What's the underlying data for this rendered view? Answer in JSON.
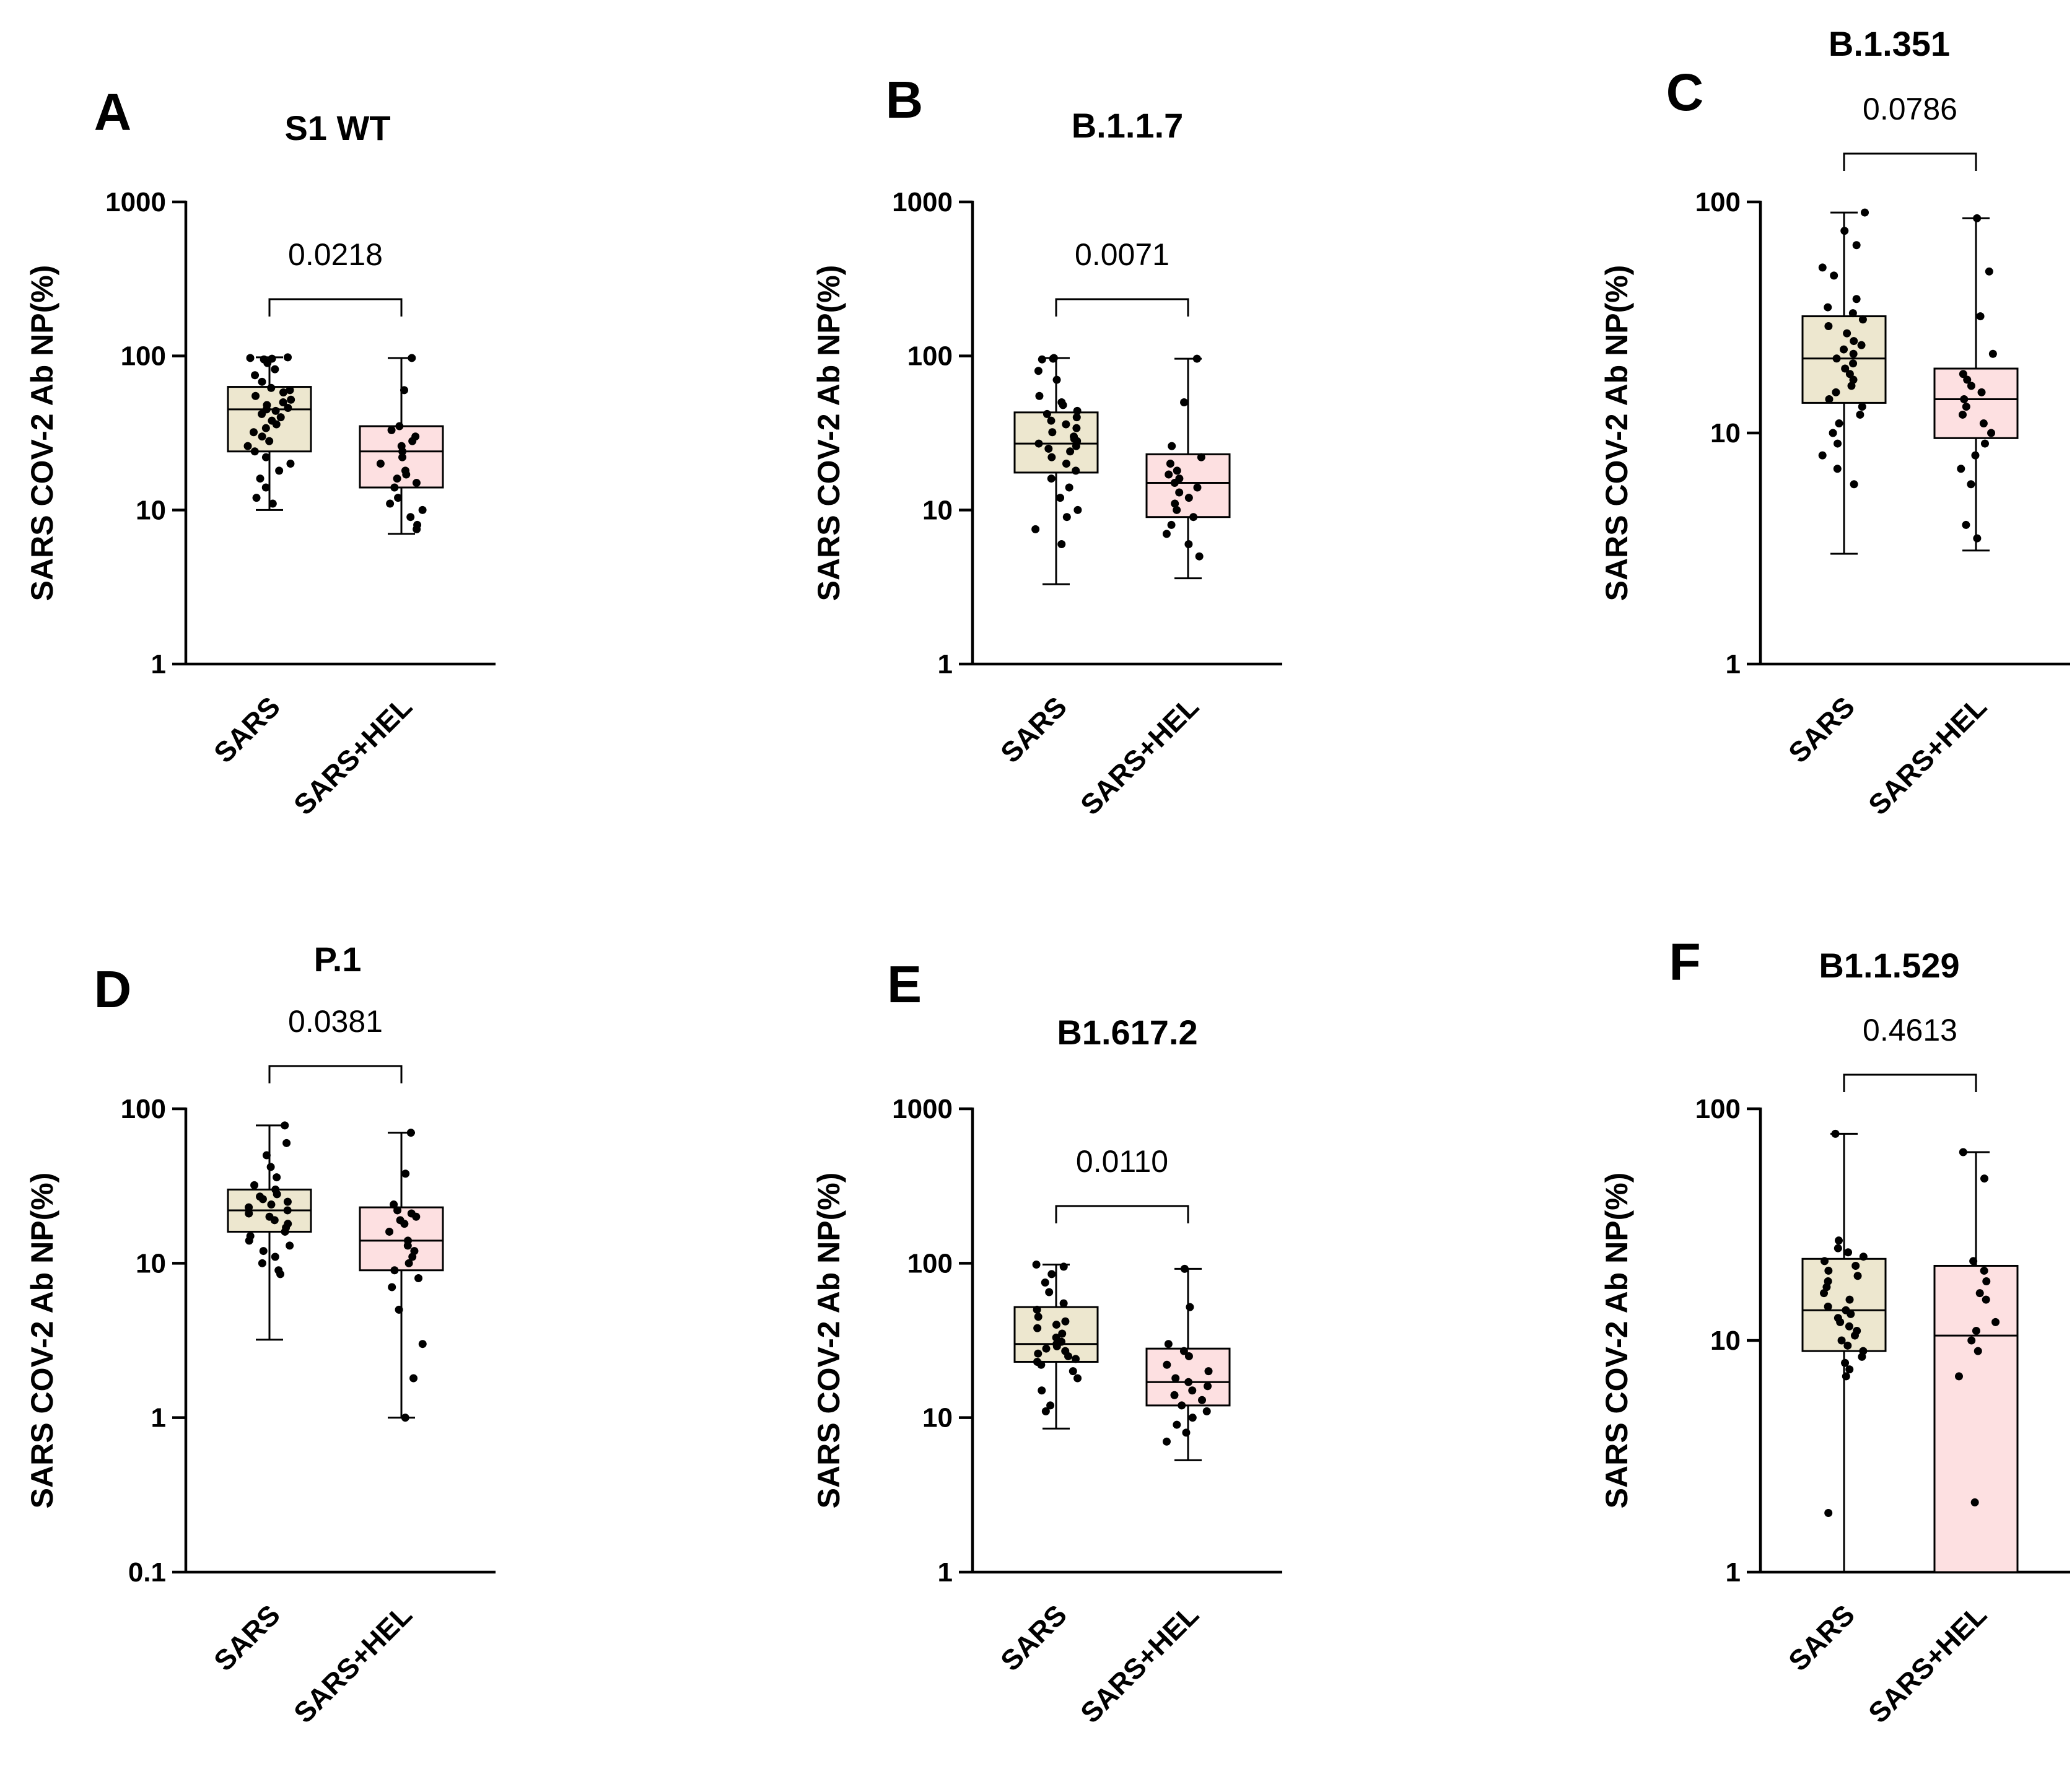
{
  "colors": {
    "sars_box": "#ede7cf",
    "hel_box": "#fde0e1",
    "ink": "#000000"
  },
  "chart_data": [
    {
      "type": "box",
      "panel": "A",
      "title": "S1 WT",
      "ylabel": "SARS COV-2 Ab NP(%)",
      "yscale": "log",
      "ylim": [
        1,
        1000
      ],
      "yticks": [
        "1",
        "10",
        "100",
        "1000"
      ],
      "categories": [
        "SARS",
        "SARS+HEL"
      ],
      "pvalue": "0.0218",
      "series": [
        {
          "name": "SARS",
          "min": 10,
          "q1": 24,
          "median": 45,
          "q3": 63,
          "max": 98,
          "points": [
            98,
            97,
            96,
            95,
            90,
            82,
            75,
            68,
            62,
            60,
            58,
            55,
            52,
            50,
            48,
            46,
            45,
            44,
            42,
            40,
            38,
            36,
            34,
            32,
            30,
            28,
            26,
            24,
            22,
            20,
            18,
            16,
            14,
            12,
            11
          ]
        },
        {
          "name": "SARS+HEL",
          "min": 7,
          "q1": 14,
          "median": 24,
          "q3": 35,
          "max": 97,
          "points": [
            97,
            60,
            35,
            33,
            30,
            28,
            26,
            24,
            22,
            20,
            18,
            17,
            16,
            15,
            14,
            12,
            11,
            10,
            9,
            8,
            7.5
          ]
        }
      ]
    },
    {
      "type": "box",
      "panel": "B",
      "title": "B.1.1.7",
      "ylabel": "SARS COV-2 Ab NP(%)",
      "yscale": "log",
      "ylim": [
        1,
        1000
      ],
      "yticks": [
        "1",
        "10",
        "100",
        "1000"
      ],
      "categories": [
        "SARS",
        "SARS+HEL"
      ],
      "pvalue": "0.0071",
      "series": [
        {
          "name": "SARS",
          "min": 3.3,
          "q1": 17.5,
          "median": 27,
          "q3": 43,
          "max": 97,
          "points": [
            97,
            96,
            95,
            80,
            70,
            55,
            50,
            48,
            44,
            42,
            40,
            38,
            36,
            34,
            32,
            30,
            29,
            28,
            27,
            26,
            25,
            24,
            22,
            20,
            18,
            16,
            14,
            12,
            10,
            9,
            7.5,
            6
          ]
        },
        {
          "name": "SARS+HEL",
          "min": 3.6,
          "q1": 9,
          "median": 15,
          "q3": 23,
          "max": 96,
          "points": [
            96,
            50,
            26,
            22,
            20,
            18,
            17,
            16,
            15,
            14,
            13,
            12,
            11,
            10,
            9,
            8,
            7,
            6,
            5
          ]
        }
      ]
    },
    {
      "type": "box",
      "panel": "C",
      "title": "B.1.351",
      "ylabel": "SARS COV-2 Ab NP(%)",
      "yscale": "log",
      "ylim": [
        1,
        100
      ],
      "yticks": [
        "1",
        "10",
        "100"
      ],
      "categories": [
        "SARS",
        "SARS+HEL"
      ],
      "pvalue": "0.0786",
      "series": [
        {
          "name": "SARS",
          "min": 3,
          "q1": 13.5,
          "median": 21,
          "q3": 32,
          "max": 90,
          "points": [
            90,
            75,
            65,
            52,
            48,
            38,
            35,
            33,
            31,
            29,
            27,
            25,
            24,
            23,
            22,
            21,
            20,
            19,
            18,
            17,
            16,
            15,
            14,
            13,
            12,
            11,
            10,
            9,
            8,
            7,
            6
          ]
        },
        {
          "name": "SARS+HEL",
          "min": 3.1,
          "q1": 9.5,
          "median": 14,
          "q3": 19,
          "max": 85,
          "points": [
            85,
            50,
            32,
            22,
            18,
            17,
            16,
            15,
            14,
            13,
            12,
            11,
            10,
            9,
            8,
            7,
            6,
            4,
            3.5
          ]
        }
      ]
    },
    {
      "type": "box",
      "panel": "D",
      "title": "P.1",
      "ylabel": "SARS COV-2 Ab NP(%)",
      "yscale": "log",
      "ylim": [
        0.1,
        100
      ],
      "yticks": [
        "0.1",
        "1",
        "10",
        "100"
      ],
      "categories": [
        "SARS",
        "SARS+HEL"
      ],
      "pvalue": "0.0381",
      "series": [
        {
          "name": "SARS",
          "min": 3.2,
          "q1": 16,
          "median": 22,
          "q3": 30,
          "max": 78,
          "points": [
            78,
            60,
            50,
            42,
            36,
            32,
            30,
            28,
            27,
            26,
            25,
            24,
            23,
            22,
            21,
            20,
            19,
            18,
            17,
            16,
            15,
            14,
            13,
            12,
            11,
            10,
            9,
            8.5
          ]
        },
        {
          "name": "SARS+HEL",
          "min": 1,
          "q1": 9,
          "median": 14,
          "q3": 23,
          "max": 70,
          "points": [
            70,
            38,
            24,
            22,
            21,
            20,
            19,
            18,
            16,
            14,
            13,
            12,
            11,
            10,
            9,
            8,
            7,
            5,
            3,
            1.8,
            1
          ]
        }
      ]
    },
    {
      "type": "box",
      "panel": "E",
      "title": "B1.617.2",
      "ylabel": "SARS COV-2 Ab NP(%)",
      "yscale": "log",
      "ylim": [
        1,
        1000
      ],
      "yticks": [
        "1",
        "10",
        "100",
        "1000"
      ],
      "categories": [
        "SARS",
        "SARS+HEL"
      ],
      "pvalue": "0.0110",
      "series": [
        {
          "name": "SARS",
          "min": 8.5,
          "q1": 23,
          "median": 30,
          "q3": 52,
          "max": 98,
          "points": [
            98,
            95,
            85,
            75,
            65,
            55,
            50,
            45,
            42,
            40,
            38,
            35,
            33,
            31,
            30,
            29,
            28,
            27,
            26,
            25,
            24,
            23,
            22,
            20,
            18,
            15,
            12,
            11
          ]
        },
        {
          "name": "SARS+HEL",
          "min": 5.3,
          "q1": 12,
          "median": 17,
          "q3": 28,
          "max": 92,
          "points": [
            92,
            52,
            30,
            27,
            25,
            22,
            20,
            18,
            17,
            16,
            15,
            14,
            13,
            12,
            11,
            10,
            9,
            8,
            7
          ]
        }
      ]
    },
    {
      "type": "box",
      "panel": "F",
      "title": "B1.1.529",
      "ylabel": "SARS COV-2 Ab NP(%)",
      "yscale": "log",
      "ylim": [
        1,
        100
      ],
      "yticks": [
        "1",
        "10",
        "100"
      ],
      "categories": [
        "SARS",
        "SARS+HEL"
      ],
      "pvalue": "0.4613",
      "series": [
        {
          "name": "SARS",
          "min": 1,
          "q1": 9,
          "median": 13.5,
          "q3": 22.5,
          "max": 78,
          "points": [
            78,
            27,
            25,
            24,
            23,
            22,
            21,
            20,
            19,
            18,
            17,
            16,
            15,
            14,
            13.5,
            13,
            12.5,
            12,
            11.5,
            11,
            10.5,
            10,
            9.5,
            9,
            8.5,
            8,
            7.5,
            7,
            1.8
          ]
        },
        {
          "name": "SARS+HEL",
          "min": 1,
          "q1": 1,
          "median": 10.5,
          "q3": 21,
          "max": 65,
          "points": [
            65,
            50,
            22,
            20,
            18,
            16,
            15,
            12,
            11,
            10,
            9,
            7,
            2
          ]
        }
      ]
    }
  ]
}
